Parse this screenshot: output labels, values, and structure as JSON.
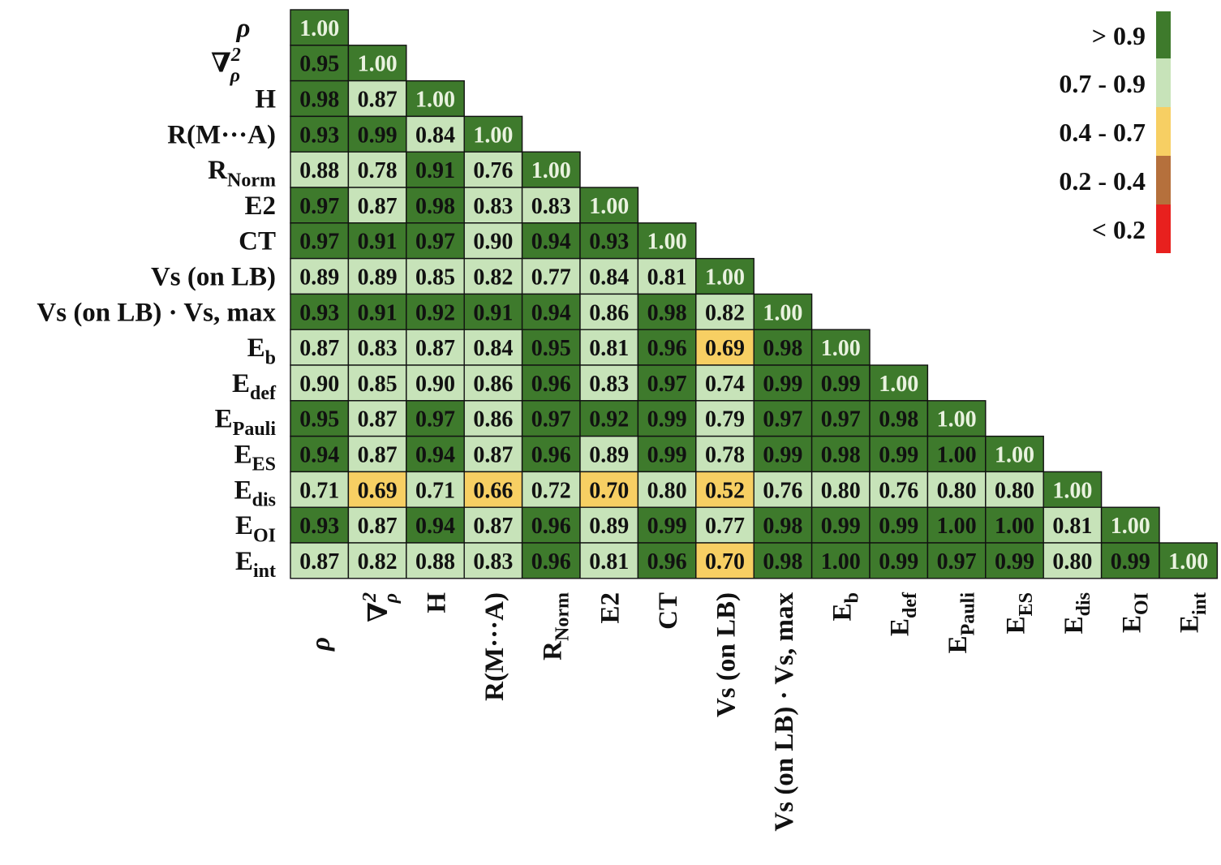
{
  "chart_data": {
    "type": "heatmap",
    "title": "",
    "xlabel": "",
    "ylabel": "",
    "variables": [
      {
        "id": "rho",
        "base": "ρ",
        "sub": "",
        "sup": ""
      },
      {
        "id": "lap-rho",
        "base": "∇",
        "sub": "ρ",
        "sup": "2"
      },
      {
        "id": "h",
        "base": "H",
        "sub": "",
        "sup": ""
      },
      {
        "id": "r-ma",
        "base": "R(M···A)",
        "sub": "",
        "sup": ""
      },
      {
        "id": "r-norm",
        "base": "R",
        "sub": "Norm",
        "sup": ""
      },
      {
        "id": "e2",
        "base": "E2",
        "sub": "",
        "sup": ""
      },
      {
        "id": "ct",
        "base": "CT",
        "sub": "",
        "sup": ""
      },
      {
        "id": "vs-on-lb",
        "base": "Vs (on LB)",
        "sub": "",
        "sup": ""
      },
      {
        "id": "vs-product",
        "base": "Vs (on LB) · Vs, max",
        "sub": "",
        "sup": ""
      },
      {
        "id": "eb",
        "base": "E",
        "sub": "b",
        "sup": ""
      },
      {
        "id": "edef",
        "base": "E",
        "sub": "def",
        "sup": ""
      },
      {
        "id": "epauli",
        "base": "E",
        "sub": "Pauli",
        "sup": ""
      },
      {
        "id": "ees",
        "base": "E",
        "sub": "ES",
        "sup": ""
      },
      {
        "id": "edis",
        "base": "E",
        "sub": "dis",
        "sup": ""
      },
      {
        "id": "eoi",
        "base": "E",
        "sub": "OI",
        "sup": ""
      },
      {
        "id": "eint",
        "base": "E",
        "sub": "int",
        "sup": ""
      }
    ],
    "matrix": [
      [
        1.0
      ],
      [
        0.95,
        1.0
      ],
      [
        0.98,
        0.87,
        1.0
      ],
      [
        0.93,
        0.99,
        0.84,
        1.0
      ],
      [
        0.88,
        0.78,
        0.91,
        0.76,
        1.0
      ],
      [
        0.97,
        0.87,
        0.98,
        0.83,
        0.83,
        1.0
      ],
      [
        0.97,
        0.91,
        0.97,
        0.9,
        0.94,
        0.93,
        1.0
      ],
      [
        0.89,
        0.89,
        0.85,
        0.82,
        0.77,
        0.84,
        0.81,
        1.0
      ],
      [
        0.93,
        0.91,
        0.92,
        0.91,
        0.94,
        0.86,
        0.98,
        0.82,
        1.0
      ],
      [
        0.87,
        0.83,
        0.87,
        0.84,
        0.95,
        0.81,
        0.96,
        0.69,
        0.98,
        1.0
      ],
      [
        0.9,
        0.85,
        0.9,
        0.86,
        0.96,
        0.83,
        0.97,
        0.74,
        0.99,
        0.99,
        1.0
      ],
      [
        0.95,
        0.87,
        0.97,
        0.86,
        0.97,
        0.92,
        0.99,
        0.79,
        0.97,
        0.97,
        0.98,
        1.0
      ],
      [
        0.94,
        0.87,
        0.94,
        0.87,
        0.96,
        0.89,
        0.99,
        0.78,
        0.99,
        0.98,
        0.99,
        1.0,
        1.0
      ],
      [
        0.71,
        0.69,
        0.71,
        0.66,
        0.72,
        0.7,
        0.8,
        0.52,
        0.76,
        0.8,
        0.76,
        0.8,
        0.8,
        1.0
      ],
      [
        0.93,
        0.87,
        0.94,
        0.87,
        0.96,
        0.89,
        0.99,
        0.77,
        0.98,
        0.99,
        0.99,
        1.0,
        1.0,
        0.81,
        1.0
      ],
      [
        0.87,
        0.82,
        0.88,
        0.83,
        0.96,
        0.81,
        0.96,
        0.7,
        0.98,
        1.0,
        0.99,
        0.97,
        0.99,
        0.8,
        0.99,
        1.0
      ]
    ],
    "legend": {
      "placement": "top-right",
      "bins": [
        {
          "label": "> 0.9",
          "min": 0.9,
          "max": 1.0,
          "color": "#3e7a2c"
        },
        {
          "label": "0.7 - 0.9",
          "min": 0.7,
          "max": 0.9,
          "color": "#c7e3b9"
        },
        {
          "label": "0.4 - 0.7",
          "min": 0.4,
          "max": 0.7,
          "color": "#f7cf63"
        },
        {
          "label": "0.2 - 0.4",
          "min": 0.2,
          "max": 0.4,
          "color": "#b5703c"
        },
        {
          "label": "< 0.2",
          "min": 0.0,
          "max": 0.2,
          "color": "#e8201e"
        }
      ]
    }
  }
}
